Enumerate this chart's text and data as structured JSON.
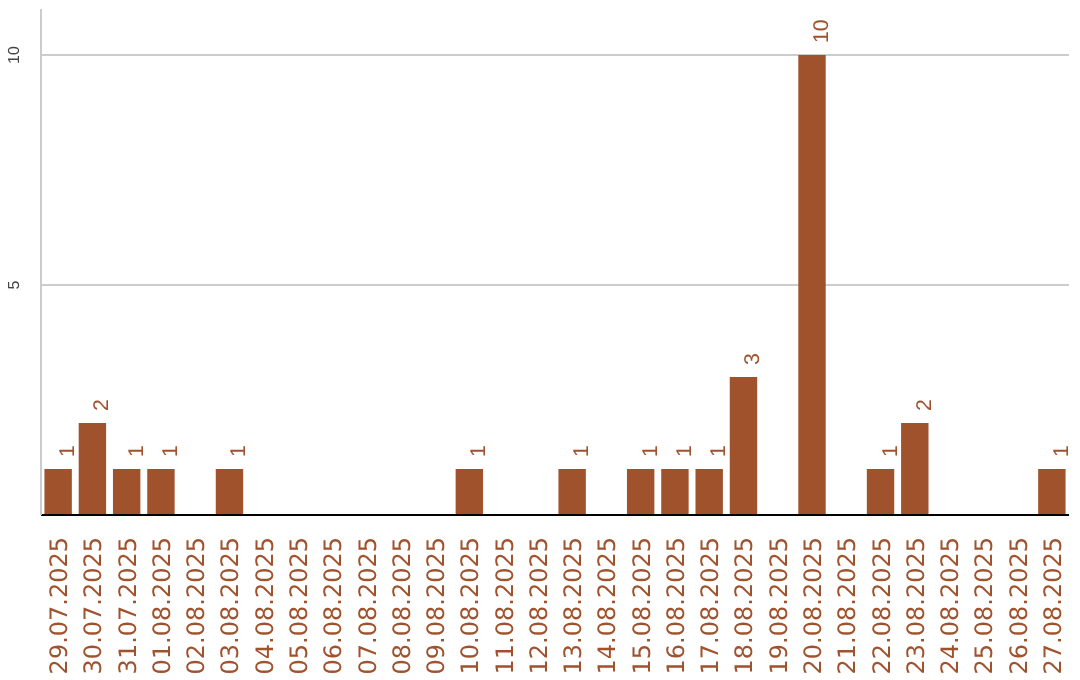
{
  "chart_data": {
    "type": "bar",
    "categories": [
      "29.07.2025",
      "30.07.2025",
      "31.07.2025",
      "01.08.2025",
      "02.08.2025",
      "03.08.2025",
      "04.08.2025",
      "05.08.2025",
      "06.08.2025",
      "07.08.2025",
      "08.08.2025",
      "09.08.2025",
      "10.08.2025",
      "11.08.2025",
      "12.08.2025",
      "13.08.2025",
      "14.08.2025",
      "15.08.2025",
      "16.08.2025",
      "17.08.2025",
      "18.08.2025",
      "19.08.2025",
      "20.08.2025",
      "21.08.2025",
      "22.08.2025",
      "23.08.2025",
      "24.08.2025",
      "25.08.2025",
      "26.08.2025",
      "27.08.2025"
    ],
    "values": [
      1,
      2,
      1,
      1,
      0,
      1,
      0,
      0,
      0,
      0,
      0,
      0,
      1,
      0,
      0,
      1,
      0,
      1,
      1,
      1,
      3,
      0,
      10,
      0,
      1,
      2,
      0,
      0,
      0,
      1
    ],
    "value_labels": [
      "1",
      "2",
      "1",
      "1",
      null,
      "1",
      null,
      null,
      null,
      null,
      null,
      null,
      "1",
      null,
      null,
      "1",
      null,
      "1",
      "1",
      "1",
      "3",
      null,
      "10",
      null,
      "1",
      "2",
      null,
      null,
      null,
      "1"
    ],
    "color": "#a0522d",
    "ylim": [
      0,
      11
    ],
    "yticks": [
      5,
      10
    ],
    "grid": "y"
  }
}
